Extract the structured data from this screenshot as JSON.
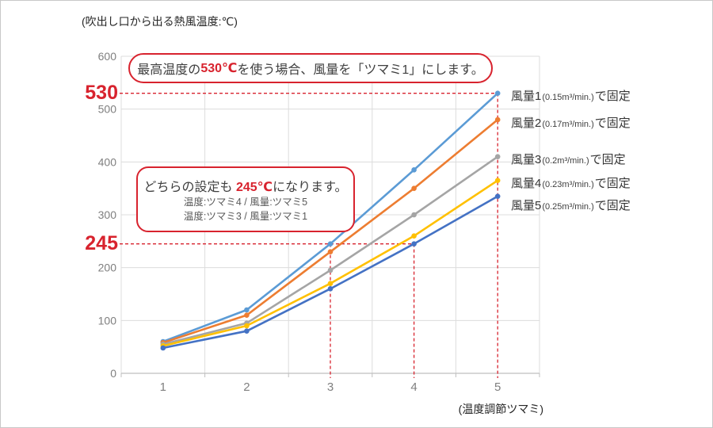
{
  "colors": {
    "accent_red": "#d8232e",
    "grid": "#dcdcdc",
    "axis": "#bfbfbf",
    "tick_text": "#7f7f7f"
  },
  "y_axis_title": "(吹出し口から出る熱風温度:℃)",
  "x_axis_title": "(温度調節ツマミ)",
  "highlight_labels": {
    "max_temp": "530",
    "mid_temp": "245"
  },
  "annotation_top": {
    "pre": "最高温度の ",
    "highlight": "530℃",
    "post": "を使う場合、風量を「ツマミ1」にします。"
  },
  "annotation_mid": {
    "pre": "どちらの設定も ",
    "highlight": "245℃",
    "post": "になります。",
    "detail1": "温度:ツマミ4 / 風量:ツマミ5",
    "detail2": "温度:ツマミ3 / 風量:ツマミ1"
  },
  "legend": [
    {
      "name": "風量1",
      "spec": "(0.15m³/min.)",
      "suffix": "で固定"
    },
    {
      "name": "風量2",
      "spec": "(0.17m³/min.)",
      "suffix": "で固定"
    },
    {
      "name": "風量3",
      "spec": "(0.2m³/min.)",
      "suffix": "で固定"
    },
    {
      "name": "風量4",
      "spec": "(0.23m³/min.)",
      "suffix": "で固定"
    },
    {
      "name": "風量5",
      "spec": "(0.25m³/min.)",
      "suffix": "で固定"
    }
  ],
  "chart_data": {
    "type": "line",
    "title": "",
    "xlabel": "(温度調節ツマミ)",
    "ylabel": "(吹出し口から出る熱風温度:℃)",
    "x": [
      1,
      2,
      3,
      4,
      5
    ],
    "xticks": [
      "1",
      "2",
      "3",
      "4",
      "5"
    ],
    "yticks": [
      0,
      100,
      200,
      300,
      400,
      500,
      600
    ],
    "ylim": [
      0,
      600
    ],
    "grid": true,
    "legend_position": "right",
    "series": [
      {
        "name": "風量1(0.15m³/min.)で固定",
        "color": "#5b9bd5",
        "values": [
          60,
          120,
          245,
          385,
          530
        ]
      },
      {
        "name": "風量2(0.17m³/min.)で固定",
        "color": "#ed7d31",
        "values": [
          58,
          110,
          230,
          350,
          480
        ]
      },
      {
        "name": "風量3(0.2m³/min.)で固定",
        "color": "#a5a5a5",
        "values": [
          55,
          95,
          195,
          300,
          410
        ]
      },
      {
        "name": "風量4(0.23m³/min.)で固定",
        "color": "#ffc000",
        "values": [
          52,
          90,
          170,
          260,
          365
        ]
      },
      {
        "name": "風量5(0.25m³/min.)で固定",
        "color": "#4472c4",
        "values": [
          48,
          80,
          160,
          245,
          335
        ]
      }
    ],
    "annotations": {
      "highlight_530": "最高温度の 530℃を使う場合、風量を「ツマミ1」にします。",
      "highlight_245": "どちらの設定も 245℃になります。 温度:ツマミ4/風量:ツマミ5 温度:ツマミ3/風量:ツマミ1"
    },
    "guides": [
      {
        "type": "h",
        "value": 530,
        "to_x": 5
      },
      {
        "type": "h",
        "value": 245,
        "to_x": 4
      },
      {
        "type": "v",
        "x": 3,
        "from_value": 245
      },
      {
        "type": "v",
        "x": 4,
        "from_value": 245
      },
      {
        "type": "v",
        "x": 5,
        "from_value": 530
      }
    ]
  }
}
